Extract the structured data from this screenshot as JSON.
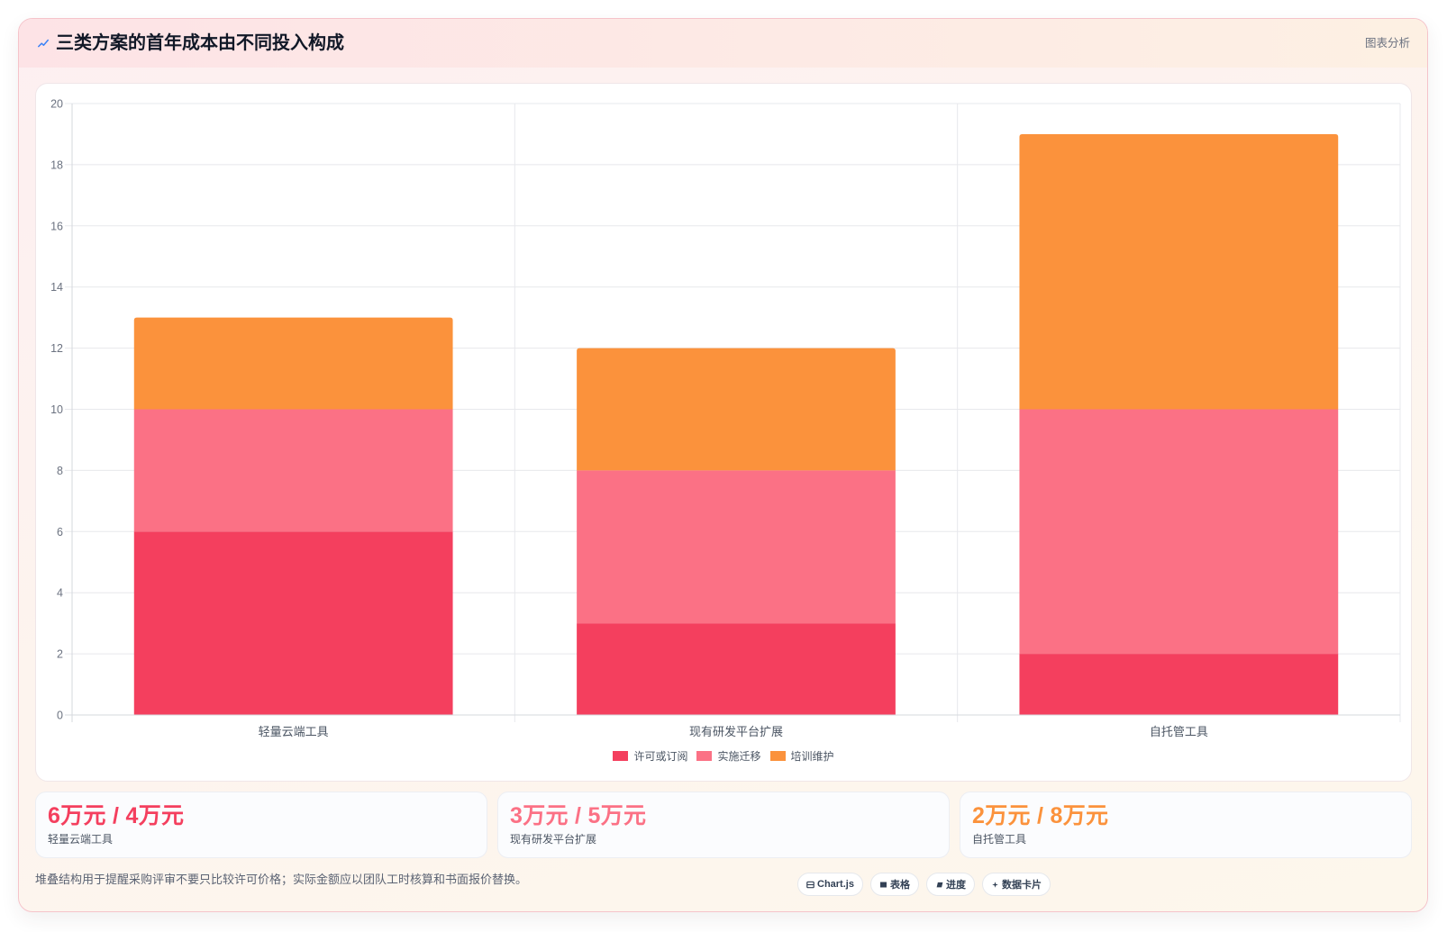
{
  "header": {
    "icon": "activity-icon",
    "tag": "图表分析"
  },
  "chart_data": {
    "type": "bar",
    "stacked": true,
    "title": "三类方案的首年成本由不同投入构成",
    "categories": [
      "轻量云端工具",
      "现有研发平台扩展",
      "自托管工具"
    ],
    "series": [
      {
        "name": "许可或订阅",
        "values": [
          6,
          3,
          2
        ],
        "color": "#f43f5e"
      },
      {
        "name": "实施迁移",
        "values": [
          4,
          5,
          8
        ],
        "color": "#fb7185"
      },
      {
        "name": "培训维护",
        "values": [
          3,
          4,
          9
        ],
        "color": "#fb923c"
      }
    ],
    "ylim": [
      0,
      20
    ],
    "yticks": [
      0,
      2,
      4,
      6,
      8,
      10,
      12,
      14,
      16,
      18,
      20
    ],
    "grid": true,
    "legend": "bottom"
  },
  "stats": [
    {
      "value": "6万元 / 4万元",
      "label": "轻量云端工具",
      "color": "#f43f5e"
    },
    {
      "value": "3万元 / 5万元",
      "label": "现有研发平台扩展",
      "color": "#fb7185"
    },
    {
      "value": "2万元 / 8万元",
      "label": "自托管工具",
      "color": "#fb923c"
    }
  ],
  "footer": {
    "note": "堆叠结构用于提醒采购评审不要只比较许可价格；实际金额应以团队工时核算和书面报价替换。",
    "chips": [
      {
        "icon": "chart-icon",
        "label": "Chart.js"
      },
      {
        "icon": "table-icon",
        "label": "表格"
      },
      {
        "icon": "progress-icon",
        "label": "进度"
      },
      {
        "icon": "sparkle-icon",
        "label": "数据卡片"
      }
    ]
  }
}
